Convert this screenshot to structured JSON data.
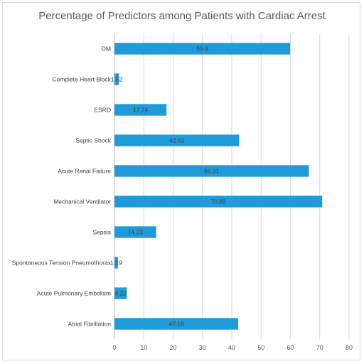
{
  "chart_data": {
    "type": "bar",
    "orientation": "horizontal",
    "title": "Percentage of Predictors among Patients with Cardiac Arrest",
    "xlabel": "",
    "ylabel": "",
    "xlim": [
      0,
      80
    ],
    "x_ticks": [
      0,
      10,
      20,
      30,
      40,
      50,
      60,
      70,
      80
    ],
    "grid": "vertical",
    "legend": "none",
    "bar_color": "#1f9bd9",
    "categories": [
      "DM",
      "Complete Heart Block",
      "ESRD",
      "Septic Shock",
      "Acute Renal Failure",
      "Mechanical Ventilator",
      "Sepsis",
      "Spontaneous Tension Pneumothorax",
      "Acute Pulmonary Embolism",
      "Atrial Fibrillation"
    ],
    "values": [
      59.9,
      1.52,
      17.74,
      42.52,
      66.31,
      70.83,
      14.23,
      1.19,
      4.22,
      42.18
    ],
    "data_labels": [
      "59.9",
      "1.52",
      "17.74",
      "42.52",
      "66.31",
      "70.83",
      "14.23",
      "1.19",
      "4.22",
      "42.18"
    ]
  }
}
